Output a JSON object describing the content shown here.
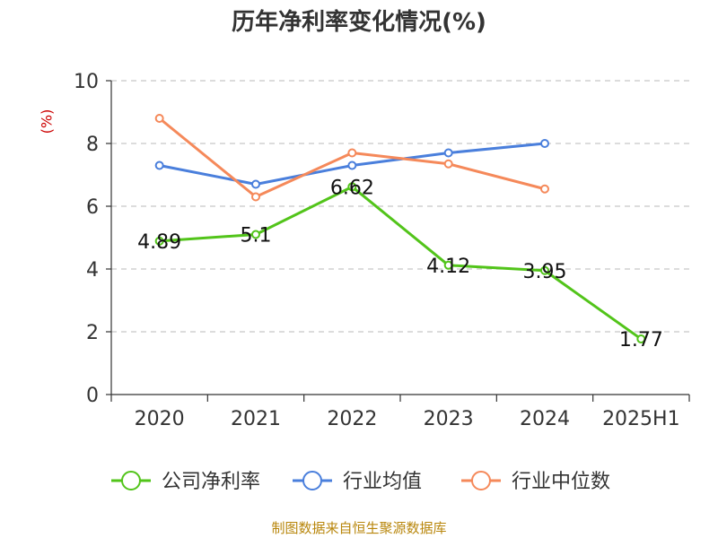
{
  "title": "历年净利率变化情况(%)",
  "unit": "(%)",
  "footer": "制图数据来自恒生聚源数据库",
  "chart_data": {
    "type": "line",
    "title": "历年净利率变化情况(%)",
    "ylabel": "(%)",
    "xlabel": "",
    "categories": [
      "2020",
      "2021",
      "2022",
      "2023",
      "2024",
      "2025H1"
    ],
    "ylim": [
      0,
      10
    ],
    "yticks": [
      0,
      2,
      4,
      6,
      8,
      10
    ],
    "grid": true,
    "legend_position": "bottom",
    "series": [
      {
        "name": "公司净利率",
        "color": "#52c41a",
        "values": [
          4.89,
          5.1,
          6.62,
          4.12,
          3.95,
          1.77
        ],
        "labels": [
          "4.89",
          "5.1",
          "6.62",
          "4.12",
          "3.95",
          "1.77"
        ]
      },
      {
        "name": "行业均值",
        "color": "#4a7fdc",
        "values": [
          7.3,
          6.7,
          7.3,
          7.7,
          8.0,
          null
        ]
      },
      {
        "name": "行业中位数",
        "color": "#f5895a",
        "values": [
          8.8,
          6.3,
          7.7,
          7.35,
          6.55,
          null
        ]
      }
    ]
  }
}
